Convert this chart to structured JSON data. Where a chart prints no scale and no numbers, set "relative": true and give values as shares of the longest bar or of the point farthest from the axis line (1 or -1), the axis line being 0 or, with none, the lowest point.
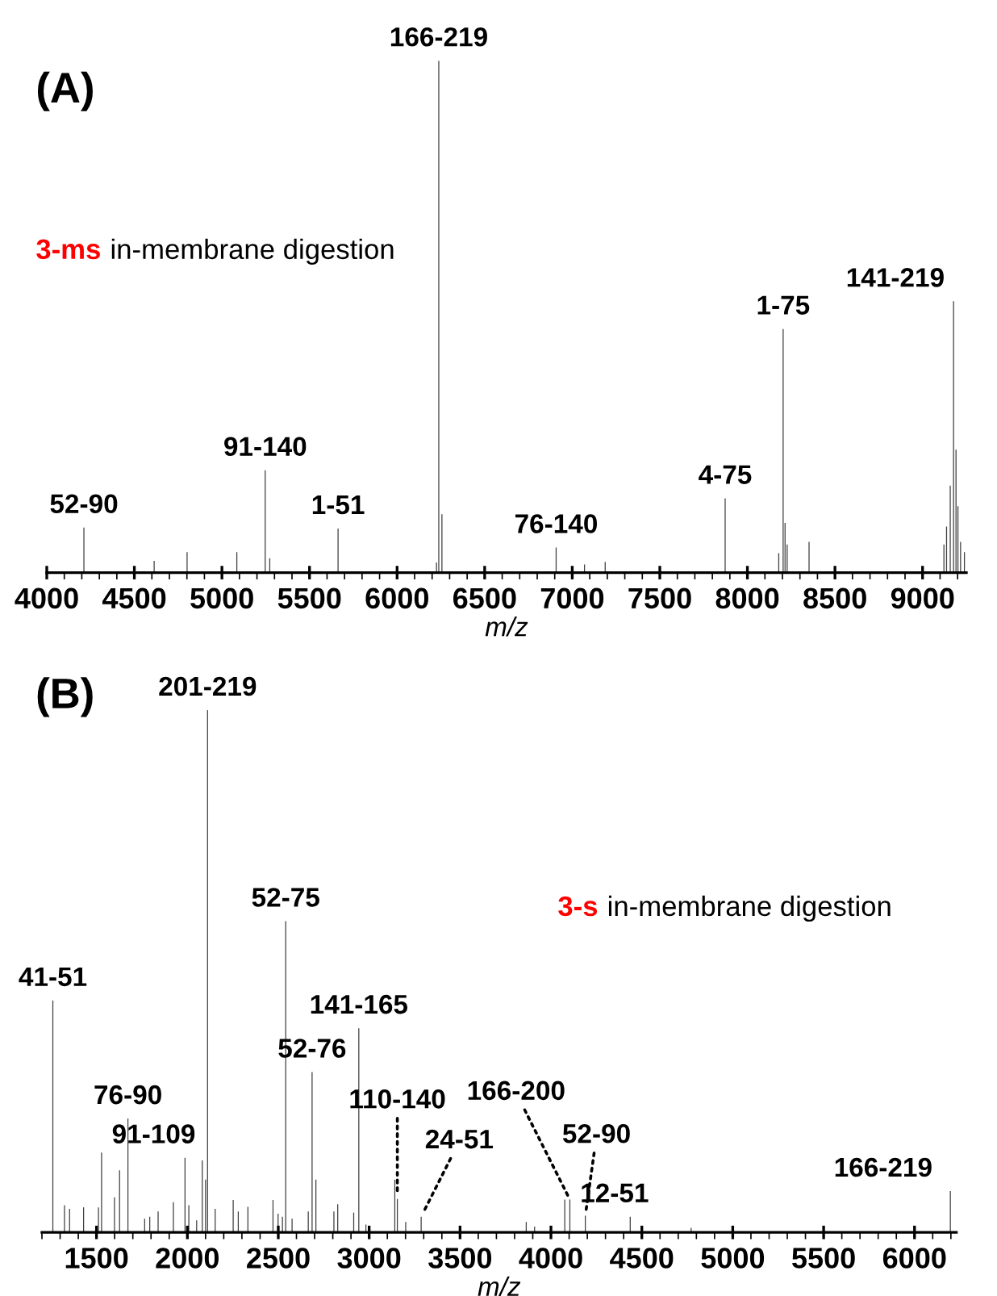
{
  "chart_data": [
    {
      "type": "bar",
      "title": "(A)",
      "xlabel": "m/z",
      "relative": true,
      "color": "#404040",
      "xlim": [
        4000,
        9250
      ],
      "xticks": [
        4000,
        4500,
        5000,
        5500,
        6000,
        6500,
        7000,
        7500,
        8000,
        8500,
        9000
      ],
      "x": [
        4212,
        4613,
        4801,
        5085,
        5247,
        5273,
        5663,
        6225,
        6238,
        6256,
        6908,
        7070,
        7188,
        7873,
        8179,
        8204,
        8215,
        8227,
        8352,
        9122,
        9137,
        9158,
        9177,
        9191,
        9202,
        9217,
        9239
      ],
      "values": [
        0.088,
        0.023,
        0.04,
        0.04,
        0.2,
        0.028,
        0.086,
        0.02,
        1.0,
        0.114,
        0.049,
        0.016,
        0.021,
        0.145,
        0.038,
        0.476,
        0.097,
        0.055,
        0.06,
        0.055,
        0.09,
        0.17,
        0.53,
        0.24,
        0.13,
        0.06,
        0.04
      ],
      "annotations": [
        "3-ms",
        "in-membrane digestion",
        {
          "text": "52-90",
          "x": 4212,
          "y": 0.088
        },
        {
          "text": "91-140",
          "x": 5247,
          "y": 0.2
        },
        {
          "text": "1-51",
          "x": 5663,
          "y": 0.086
        },
        {
          "text": "166-219",
          "x": 6238,
          "y": 1.0
        },
        {
          "text": "76-140",
          "x": 6908,
          "y": 0.049
        },
        {
          "text": "4-75",
          "x": 7873,
          "y": 0.145
        },
        {
          "text": "1-75",
          "x": 8204,
          "y": 0.476
        },
        {
          "text": "141-219",
          "x": 9177,
          "y": 0.53
        }
      ]
    },
    {
      "type": "bar",
      "title": "(B)",
      "xlabel": "m/z",
      "relative": true,
      "color": "#404040",
      "xlim": [
        1200,
        6230
      ],
      "xticks": [
        1500,
        2000,
        2500,
        3000,
        3500,
        4000,
        4500,
        5000,
        5500,
        6000
      ],
      "x": [
        1260,
        1324,
        1352,
        1429,
        1511,
        1528,
        1599,
        1627,
        1673,
        1765,
        1793,
        1839,
        1923,
        1987,
        2008,
        2051,
        2082,
        2100,
        2111,
        2153,
        2252,
        2280,
        2333,
        2471,
        2499,
        2523,
        2541,
        2576,
        2665,
        2686,
        2707,
        2806,
        2827,
        2915,
        2943,
        2982,
        3141,
        3155,
        3201,
        3286,
        3864,
        3910,
        4076,
        4104,
        4189,
        4436,
        4771,
        6197
      ],
      "values": [
        0.444,
        0.052,
        0.045,
        0.048,
        0.048,
        0.153,
        0.067,
        0.119,
        0.218,
        0.026,
        0.03,
        0.04,
        0.058,
        0.143,
        0.052,
        0.023,
        0.138,
        0.101,
        1.0,
        0.045,
        0.062,
        0.04,
        0.049,
        0.062,
        0.036,
        0.03,
        0.596,
        0.026,
        0.04,
        0.307,
        0.101,
        0.04,
        0.054,
        0.038,
        0.391,
        0.015,
        0.101,
        0.064,
        0.02,
        0.03,
        0.02,
        0.011,
        0.063,
        0.063,
        0.032,
        0.03,
        0.009,
        0.079
      ],
      "annotations": [
        "3-s",
        "in-membrane digestion",
        {
          "text": "41-51",
          "x": 1260,
          "y": 0.444
        },
        {
          "text": "76-90",
          "x": 1673,
          "y": 0.218
        },
        {
          "text": "91-109",
          "x": 1987,
          "y": 0.143
        },
        {
          "text": "201-219",
          "x": 2111,
          "y": 1.0
        },
        {
          "text": "52-75",
          "x": 2541,
          "y": 0.596
        },
        {
          "text": "52-76",
          "x": 2686,
          "y": 0.307
        },
        {
          "text": "141-165",
          "x": 2943,
          "y": 0.391
        },
        {
          "text": "110-140",
          "x": 3155,
          "y": 0.064
        },
        {
          "text": "24-51",
          "x": 3286,
          "y": 0.03
        },
        {
          "text": "166-200",
          "x": 4104,
          "y": 0.063
        },
        {
          "text": "52-90",
          "x": 4189,
          "y": 0.032
        },
        {
          "text": "12-51",
          "x": 4436,
          "y": 0.03
        },
        {
          "text": "166-219",
          "x": 6197,
          "y": 0.079
        }
      ]
    }
  ]
}
